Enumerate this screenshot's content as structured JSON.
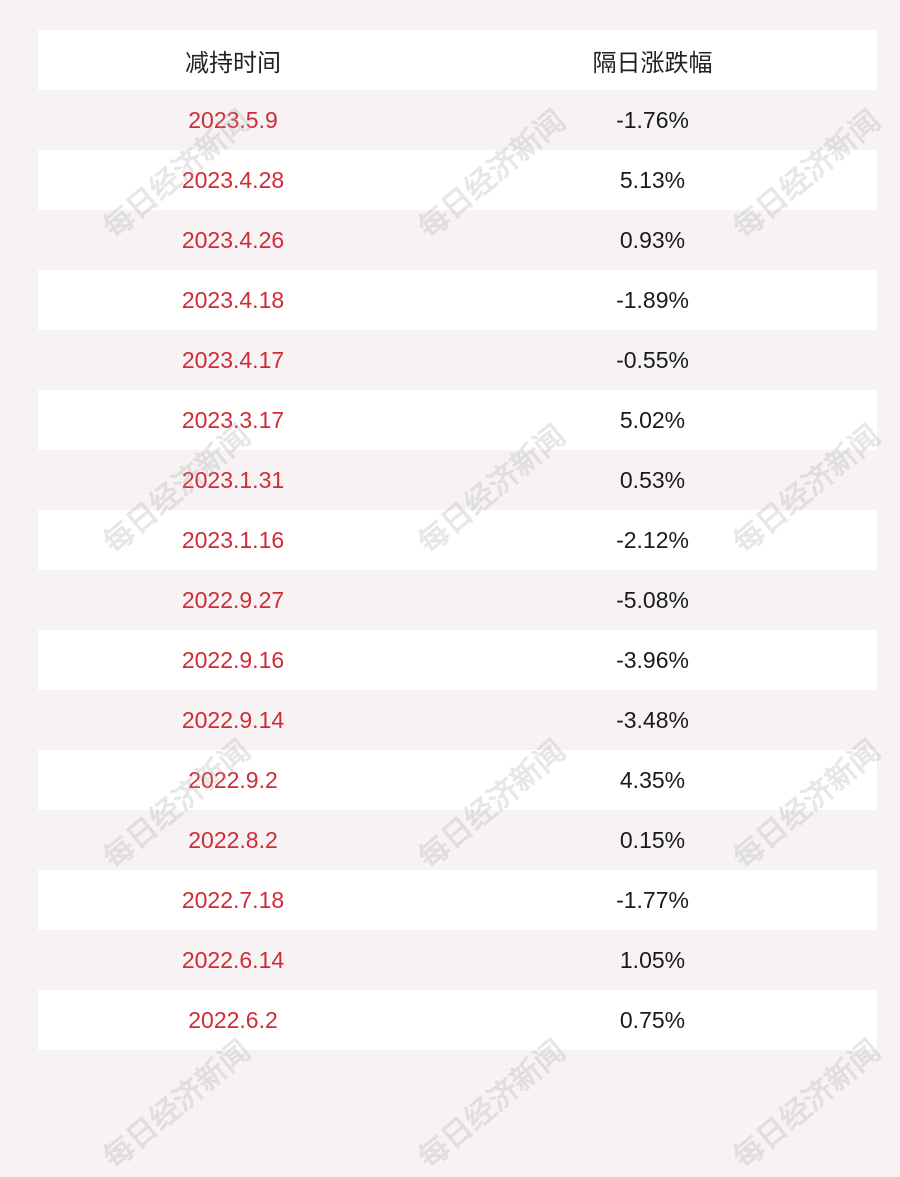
{
  "table": {
    "header": [
      "减持时间",
      "隔日涨跌幅"
    ],
    "rows": [
      [
        "2023.5.9",
        "-1.76%"
      ],
      [
        "2023.4.28",
        "5.13%"
      ],
      [
        "2023.4.26",
        "0.93%"
      ],
      [
        "2023.4.18",
        "-1.89%"
      ],
      [
        "2023.4.17",
        "-0.55%"
      ],
      [
        "2023.3.17",
        "5.02%"
      ],
      [
        "2023.1.31",
        "0.53%"
      ],
      [
        "2023.1.16",
        "-2.12%"
      ],
      [
        "2022.9.27",
        "-5.08%"
      ],
      [
        "2022.9.16",
        "-3.96%"
      ],
      [
        "2022.9.14",
        "-3.48%"
      ],
      [
        "2022.9.2",
        "4.35%"
      ],
      [
        "2022.8.2",
        "0.15%"
      ],
      [
        "2022.7.18",
        "-1.77%"
      ],
      [
        "2022.6.14",
        "1.05%"
      ],
      [
        "2022.6.2",
        "0.75%"
      ]
    ]
  },
  "watermark": "每日经济新闻"
}
